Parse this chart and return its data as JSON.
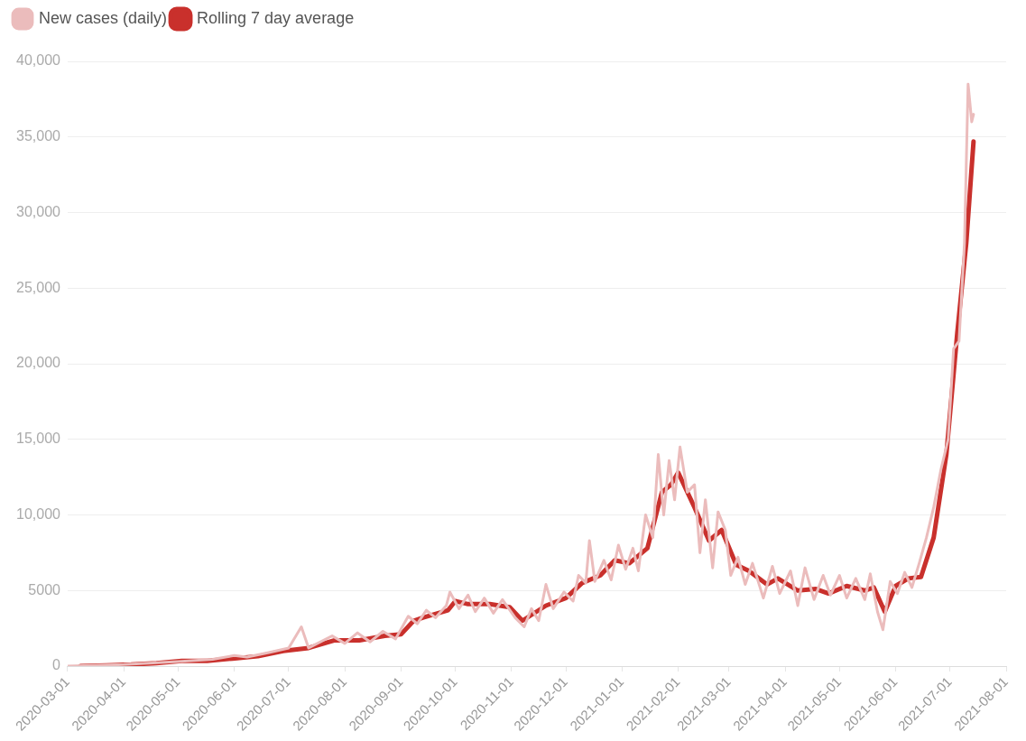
{
  "chart_data": {
    "type": "line",
    "legend": "top left",
    "grid": "y",
    "marker": "none",
    "line_style": "solid",
    "xlim": [
      "2020-03-01",
      "2021-08-01"
    ],
    "xticks": [
      "2020-03-01",
      "2020-04-01",
      "2020-05-01",
      "2020-06-01",
      "2020-07-01",
      "2020-08-01",
      "2020-09-01",
      "2020-10-01",
      "2020-11-01",
      "2020-12-01",
      "2021-01-01",
      "2021-02-01",
      "2021-03-01",
      "2021-04-01",
      "2021-05-01",
      "2021-06-01",
      "2021-07-01",
      "2021-08-01"
    ],
    "ylim": [
      0,
      40000
    ],
    "yticks": [
      0,
      5000,
      {
        "value": 10000,
        "label": "10,000"
      },
      {
        "value": 15000,
        "label": "15,000"
      },
      {
        "value": 20000,
        "label": "20,000"
      },
      {
        "value": 25000,
        "label": "25,000"
      },
      {
        "value": 30000,
        "label": "30,000"
      },
      {
        "value": 35000,
        "label": "35,000"
      },
      {
        "value": 40000,
        "label": "40,000"
      }
    ],
    "series": [
      {
        "name": "New cases (daily)",
        "color": "#ebbcbc",
        "x": [
          "2020-03-01",
          "2020-04-01",
          "2020-05-01",
          "2020-05-20",
          "2020-06-01",
          "2020-06-08",
          "2020-06-20",
          "2020-07-01",
          "2020-07-08",
          "2020-07-12",
          "2020-07-25",
          "2020-08-01",
          "2020-08-08",
          "2020-08-15",
          "2020-08-22",
          "2020-08-29",
          "2020-09-05",
          "2020-09-10",
          "2020-09-15",
          "2020-09-20",
          "2020-09-26",
          "2020-09-28",
          "2020-10-03",
          "2020-10-08",
          "2020-10-12",
          "2020-10-17",
          "2020-10-22",
          "2020-10-27",
          "2020-11-03",
          "2020-11-08",
          "2020-11-12",
          "2020-11-16",
          "2020-11-20",
          "2020-11-24",
          "2020-11-30",
          "2020-12-05",
          "2020-12-08",
          "2020-12-12",
          "2020-12-14",
          "2020-12-17",
          "2020-12-22",
          "2020-12-26",
          "2020-12-30",
          "2021-01-03",
          "2021-01-07",
          "2021-01-10",
          "2021-01-14",
          "2021-01-18",
          "2021-01-21",
          "2021-01-24",
          "2021-01-27",
          "2021-01-30",
          "2021-02-02",
          "2021-02-06",
          "2021-02-10",
          "2021-02-13",
          "2021-02-16",
          "2021-02-20",
          "2021-02-23",
          "2021-02-27",
          "2021-03-02",
          "2021-03-06",
          "2021-03-10",
          "2021-03-14",
          "2021-03-20",
          "2021-03-25",
          "2021-03-29",
          "2021-04-04",
          "2021-04-08",
          "2021-04-12",
          "2021-04-17",
          "2021-04-22",
          "2021-04-26",
          "2021-05-01",
          "2021-05-05",
          "2021-05-10",
          "2021-05-15",
          "2021-05-18",
          "2021-05-22",
          "2021-05-25",
          "2021-05-29",
          "2021-06-02",
          "2021-06-06",
          "2021-06-10",
          "2021-06-14",
          "2021-06-18",
          "2021-06-22",
          "2021-06-26",
          "2021-06-30",
          "2021-07-03",
          "2021-07-06",
          "2021-07-09",
          "2021-07-11",
          "2021-07-13",
          "2021-07-14"
        ],
        "values": [
          0,
          100,
          300,
          450,
          700,
          600,
          900,
          1200,
          2600,
          1200,
          2000,
          1500,
          2200,
          1600,
          2300,
          1800,
          3300,
          2800,
          3700,
          3200,
          4000,
          4900,
          3800,
          4700,
          3600,
          4500,
          3500,
          4400,
          3200,
          2600,
          3800,
          3000,
          5400,
          3800,
          4900,
          4300,
          6000,
          5500,
          8300,
          5600,
          7000,
          5700,
          8000,
          6400,
          7800,
          6300,
          10000,
          8500,
          14000,
          10000,
          13600,
          11000,
          14500,
          11500,
          12000,
          7500,
          11000,
          6500,
          10200,
          9000,
          6000,
          7200,
          5400,
          6800,
          4500,
          6600,
          4800,
          6300,
          4000,
          6500,
          4400,
          6000,
          4700,
          6000,
          4500,
          5800,
          4400,
          6100,
          3600,
          2400,
          5600,
          4800,
          6200,
          5200,
          6800,
          8500,
          10500,
          13000,
          15000,
          21000,
          21500,
          28000,
          38500,
          36000,
          36500
        ]
      },
      {
        "name": "Rolling 7 day average",
        "color": "#c9302c",
        "x": [
          "2020-03-08",
          "2020-03-22",
          "2020-04-05",
          "2020-04-19",
          "2020-05-03",
          "2020-05-17",
          "2020-05-31",
          "2020-06-14",
          "2020-06-28",
          "2020-07-12",
          "2020-07-26",
          "2020-08-09",
          "2020-08-23",
          "2020-09-01",
          "2020-09-08",
          "2020-09-13",
          "2020-09-27",
          "2020-10-01",
          "2020-10-08",
          "2020-10-20",
          "2020-10-31",
          "2020-11-07",
          "2020-11-20",
          "2020-12-01",
          "2020-12-10",
          "2020-12-20",
          "2020-12-28",
          "2021-01-05",
          "2021-01-15",
          "2021-01-23",
          "2021-01-28",
          "2021-02-01",
          "2021-02-10",
          "2021-02-18",
          "2021-02-25",
          "2021-03-05",
          "2021-03-12",
          "2021-03-22",
          "2021-03-28",
          "2021-04-08",
          "2021-04-18",
          "2021-04-25",
          "2021-05-05",
          "2021-05-15",
          "2021-05-20",
          "2021-05-26",
          "2021-06-01",
          "2021-06-08",
          "2021-06-15",
          "2021-06-22",
          "2021-06-29",
          "2021-07-05",
          "2021-07-10",
          "2021-07-14"
        ],
        "values": [
          0,
          50,
          100,
          200,
          350,
          350,
          500,
          650,
          1000,
          1200,
          1700,
          1700,
          2000,
          2100,
          3000,
          3200,
          3700,
          4300,
          4100,
          4100,
          3900,
          3000,
          4000,
          4500,
          5500,
          6000,
          7000,
          6800,
          7800,
          11500,
          12000,
          12800,
          10500,
          8300,
          9000,
          6700,
          6300,
          5400,
          5800,
          5000,
          5100,
          4800,
          5300,
          5000,
          5200,
          3600,
          5300,
          5800,
          5900,
          8500,
          14000,
          22000,
          28000,
          34700
        ]
      }
    ]
  }
}
